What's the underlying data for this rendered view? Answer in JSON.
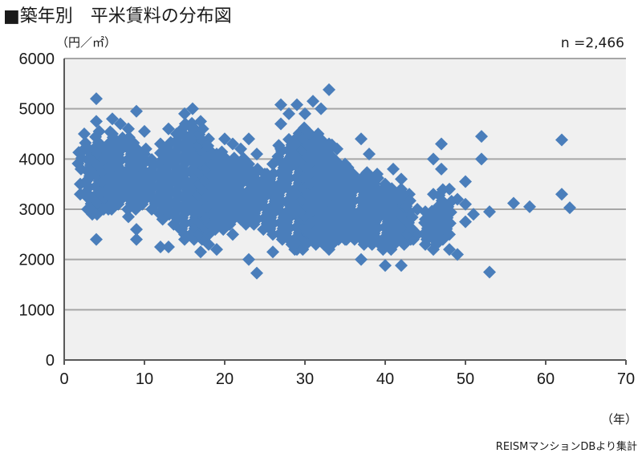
{
  "header": {
    "title": "■築年別　平米賃料の分布図",
    "y_unit": "（円／㎡）",
    "n_label": "n =2,466",
    "x_unit": "（年）",
    "source": "REISMマンションDBより集計"
  },
  "colors": {
    "marker": "#4a7ebb",
    "plot_bg": "#f0f0f0",
    "gridline": "#a6a6a6",
    "axis": "#595959"
  },
  "chart_data": {
    "type": "scatter",
    "title": "築年別　平米賃料の分布図",
    "xlabel": "（年）",
    "ylabel": "（円／㎡）",
    "xlim": [
      0,
      70
    ],
    "ylim": [
      0,
      6000
    ],
    "x_ticks": [
      0,
      10,
      20,
      30,
      40,
      50,
      60,
      70
    ],
    "y_ticks": [
      0,
      1000,
      2000,
      3000,
      4000,
      5000,
      6000
    ],
    "grid": "horizontal",
    "n": "2,466",
    "series": [
      {
        "name": "",
        "color": "#4a7ebb",
        "points": [
          [
            4,
            5200
          ],
          [
            4,
            4750
          ],
          [
            4,
            2400
          ],
          [
            2.5,
            4500
          ],
          [
            2.5,
            4200
          ],
          [
            3,
            4000
          ],
          [
            3,
            3600
          ],
          [
            3,
            3300
          ],
          [
            5,
            3900
          ],
          [
            5,
            3400
          ],
          [
            6,
            4800
          ],
          [
            6,
            4500
          ],
          [
            6,
            3100
          ],
          [
            7,
            4700
          ],
          [
            7,
            4300
          ],
          [
            7,
            3800
          ],
          [
            8,
            4600
          ],
          [
            8,
            4200
          ],
          [
            8,
            3300
          ],
          [
            8,
            2850
          ],
          [
            9,
            4950
          ],
          [
            9,
            4000
          ],
          [
            9,
            3500
          ],
          [
            9,
            2600
          ],
          [
            9,
            2400
          ],
          [
            10,
            4550
          ],
          [
            10,
            4100
          ],
          [
            10,
            3700
          ],
          [
            11,
            3900
          ],
          [
            11,
            3200
          ],
          [
            12,
            4300
          ],
          [
            12,
            3700
          ],
          [
            12,
            2250
          ],
          [
            13,
            4600
          ],
          [
            13,
            4000
          ],
          [
            13,
            3300
          ],
          [
            13,
            2250
          ],
          [
            14,
            4500
          ],
          [
            14,
            3700
          ],
          [
            14,
            3000
          ],
          [
            15,
            4900
          ],
          [
            15,
            4300
          ],
          [
            15,
            3600
          ],
          [
            15,
            2400
          ],
          [
            16,
            5000
          ],
          [
            16,
            4600
          ],
          [
            16,
            3800
          ],
          [
            16,
            2500
          ],
          [
            17,
            4750
          ],
          [
            17,
            4000
          ],
          [
            17,
            3300
          ],
          [
            17,
            2150
          ],
          [
            18,
            4400
          ],
          [
            18,
            3700
          ],
          [
            18,
            2900
          ],
          [
            18,
            2300
          ],
          [
            19,
            4100
          ],
          [
            19,
            3300
          ],
          [
            19,
            2200
          ],
          [
            20,
            4400
          ],
          [
            20,
            3800
          ],
          [
            21,
            4300
          ],
          [
            21,
            3500
          ],
          [
            21,
            2500
          ],
          [
            22,
            4200
          ],
          [
            22,
            3500
          ],
          [
            22,
            2800
          ],
          [
            23,
            4400
          ],
          [
            23,
            3900
          ],
          [
            23,
            2000
          ],
          [
            24,
            4100
          ],
          [
            24,
            3200
          ],
          [
            24,
            1730
          ],
          [
            25,
            3700
          ],
          [
            25,
            2800
          ],
          [
            26,
            3900
          ],
          [
            26,
            3300
          ],
          [
            26,
            2150
          ],
          [
            27,
            5080
          ],
          [
            27,
            4700
          ],
          [
            27,
            4200
          ],
          [
            27,
            3400
          ],
          [
            28,
            4900
          ],
          [
            28,
            4000
          ],
          [
            28,
            3100
          ],
          [
            28,
            2400
          ],
          [
            29,
            5080
          ],
          [
            29,
            4300
          ],
          [
            29,
            3400
          ],
          [
            29,
            2200
          ],
          [
            30,
            4900
          ],
          [
            30,
            3900
          ],
          [
            30,
            3000
          ],
          [
            30,
            2300
          ],
          [
            31,
            5150
          ],
          [
            31,
            4300
          ],
          [
            31,
            3300
          ],
          [
            31,
            2500
          ],
          [
            32,
            5000
          ],
          [
            32,
            4000
          ],
          [
            32,
            3200
          ],
          [
            32,
            2400
          ],
          [
            33,
            5380
          ],
          [
            33,
            4300
          ],
          [
            33,
            3300
          ],
          [
            33,
            2200
          ],
          [
            34,
            4200
          ],
          [
            34,
            3400
          ],
          [
            34,
            2600
          ],
          [
            35,
            3900
          ],
          [
            35,
            3100
          ],
          [
            35,
            2400
          ],
          [
            36,
            3700
          ],
          [
            36,
            2800
          ],
          [
            37,
            4400
          ],
          [
            37,
            3400
          ],
          [
            37,
            2000
          ],
          [
            38,
            4100
          ],
          [
            38,
            3100
          ],
          [
            38,
            2500
          ],
          [
            39,
            3700
          ],
          [
            39,
            2800
          ],
          [
            40,
            3500
          ],
          [
            40,
            2400
          ],
          [
            40,
            1880
          ],
          [
            41,
            3800
          ],
          [
            41,
            3000
          ],
          [
            41,
            2300
          ],
          [
            42,
            3600
          ],
          [
            42,
            2700
          ],
          [
            42,
            1880
          ],
          [
            43,
            3300
          ],
          [
            43,
            2800
          ],
          [
            44,
            3000
          ],
          [
            44,
            2500
          ],
          [
            45,
            2800
          ],
          [
            45,
            2300
          ],
          [
            46,
            4000
          ],
          [
            46,
            3300
          ],
          [
            46,
            2600
          ],
          [
            46,
            2200
          ],
          [
            47,
            4300
          ],
          [
            47,
            3800
          ],
          [
            47,
            3100
          ],
          [
            47,
            2500
          ],
          [
            48,
            3400
          ],
          [
            48,
            2200
          ],
          [
            49,
            2100
          ],
          [
            49,
            3200
          ],
          [
            50,
            3550
          ],
          [
            50,
            3100
          ],
          [
            50,
            2750
          ],
          [
            51,
            2900
          ],
          [
            52,
            4450
          ],
          [
            52,
            4000
          ],
          [
            53,
            2950
          ],
          [
            53,
            1750
          ],
          [
            56,
            3120
          ],
          [
            58,
            3050
          ],
          [
            62,
            4380
          ],
          [
            62,
            3300
          ],
          [
            63,
            3030
          ],
          [
            2,
            3300
          ],
          [
            2,
            3500
          ],
          [
            3.5,
            2900
          ],
          [
            5.5,
            3000
          ],
          [
            6.5,
            3300
          ],
          [
            10.5,
            3300
          ],
          [
            12.5,
            2900
          ],
          [
            14.5,
            2600
          ],
          [
            16.5,
            3300
          ],
          [
            18.5,
            3500
          ],
          [
            20.5,
            2700
          ],
          [
            22.5,
            3200
          ],
          [
            25.5,
            3400
          ],
          [
            27.5,
            2900
          ],
          [
            29.5,
            2700
          ],
          [
            31.5,
            2800
          ],
          [
            33.5,
            2700
          ],
          [
            35.5,
            2800
          ],
          [
            38.5,
            2600
          ],
          [
            41.5,
            2600
          ],
          [
            43.5,
            2400
          ]
        ]
      }
    ]
  }
}
